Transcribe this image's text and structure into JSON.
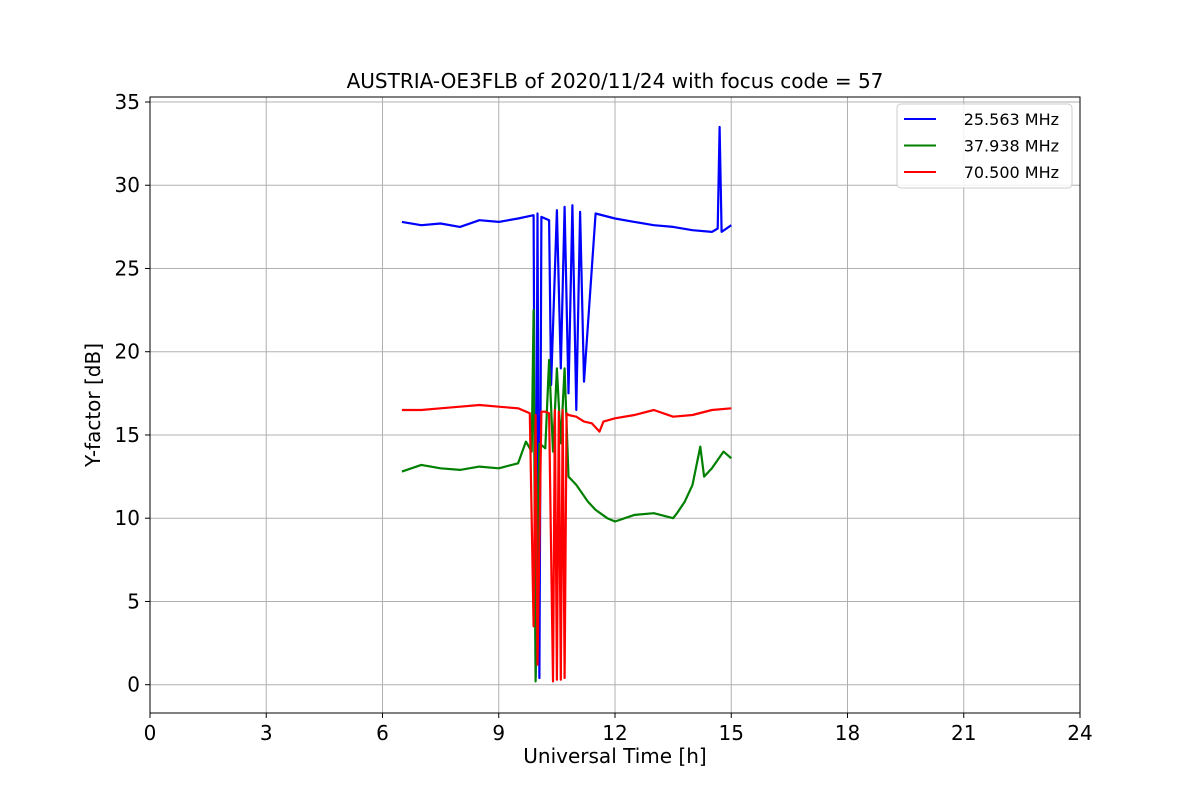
{
  "chart_data": {
    "type": "line",
    "title": "AUSTRIA-OE3FLB of 2020/11/24 with focus code = 57",
    "xlabel": "Universal Time [h]",
    "ylabel": "Y-factor [dB]",
    "xlim": [
      0,
      24
    ],
    "ylim": [
      -1.7,
      35.3
    ],
    "xticks": [
      "0",
      "3",
      "6",
      "9",
      "12",
      "15",
      "18",
      "21",
      "24"
    ],
    "yticks": [
      "0",
      "5",
      "10",
      "15",
      "20",
      "25",
      "30",
      "35"
    ],
    "grid": true,
    "legend_position": "top-right",
    "series": [
      {
        "name": "25.563 MHz",
        "color": "#0000ff",
        "x": [
          6.5,
          7.0,
          7.5,
          8.0,
          8.5,
          9.0,
          9.5,
          9.9,
          9.95,
          10.0,
          10.05,
          10.1,
          10.3,
          10.35,
          10.5,
          10.6,
          10.7,
          10.8,
          10.9,
          11.0,
          11.1,
          11.2,
          11.5,
          12.0,
          12.5,
          13.0,
          13.5,
          14.0,
          14.5,
          14.65,
          14.7,
          14.75,
          15.0
        ],
        "y": [
          27.8,
          27.6,
          27.7,
          27.5,
          27.9,
          27.8,
          28.0,
          28.2,
          0.5,
          28.3,
          0.4,
          28.1,
          27.9,
          18.0,
          28.5,
          19.0,
          28.7,
          17.5,
          28.8,
          16.5,
          28.4,
          18.2,
          28.3,
          28.0,
          27.8,
          27.6,
          27.5,
          27.3,
          27.2,
          27.4,
          33.5,
          27.2,
          27.6
        ]
      },
      {
        "name": "37.938 MHz",
        "color": "#008000",
        "x": [
          6.5,
          7.0,
          7.5,
          8.0,
          8.5,
          9.0,
          9.5,
          9.7,
          9.85,
          9.9,
          9.95,
          10.0,
          10.05,
          10.2,
          10.3,
          10.4,
          10.5,
          10.6,
          10.7,
          10.8,
          11.0,
          11.3,
          11.5,
          11.8,
          12.0,
          12.5,
          13.0,
          13.5,
          13.6,
          13.8,
          14.0,
          14.2,
          14.3,
          14.5,
          14.8,
          15.0
        ],
        "y": [
          12.8,
          13.2,
          13.0,
          12.9,
          13.1,
          13.0,
          13.3,
          14.6,
          14.0,
          22.5,
          0.2,
          9.0,
          14.5,
          14.2,
          19.5,
          14.0,
          19.0,
          14.5,
          19.0,
          12.5,
          12.0,
          11.0,
          10.5,
          10.0,
          9.8,
          10.2,
          10.3,
          10.0,
          10.3,
          11.0,
          12.0,
          14.3,
          12.5,
          13.0,
          14.0,
          13.6
        ]
      },
      {
        "name": "70.500 MHz",
        "color": "#ff0000",
        "x": [
          6.5,
          7.0,
          7.5,
          8.0,
          8.5,
          9.0,
          9.5,
          9.8,
          9.9,
          9.95,
          10.0,
          10.1,
          10.2,
          10.3,
          10.4,
          10.45,
          10.5,
          10.55,
          10.6,
          10.65,
          10.7,
          10.75,
          10.8,
          11.0,
          11.2,
          11.4,
          11.6,
          11.7,
          12.0,
          12.5,
          13.0,
          13.5,
          14.0,
          14.5,
          15.0
        ],
        "y": [
          16.5,
          16.5,
          16.6,
          16.7,
          16.8,
          16.7,
          16.6,
          16.3,
          3.5,
          16.2,
          1.2,
          16.4,
          16.4,
          16.3,
          0.2,
          16.5,
          0.3,
          16.4,
          0.3,
          16.5,
          0.4,
          16.3,
          16.2,
          16.1,
          15.8,
          15.7,
          15.2,
          15.8,
          16.0,
          16.2,
          16.5,
          16.1,
          16.2,
          16.5,
          16.6
        ]
      }
    ]
  }
}
